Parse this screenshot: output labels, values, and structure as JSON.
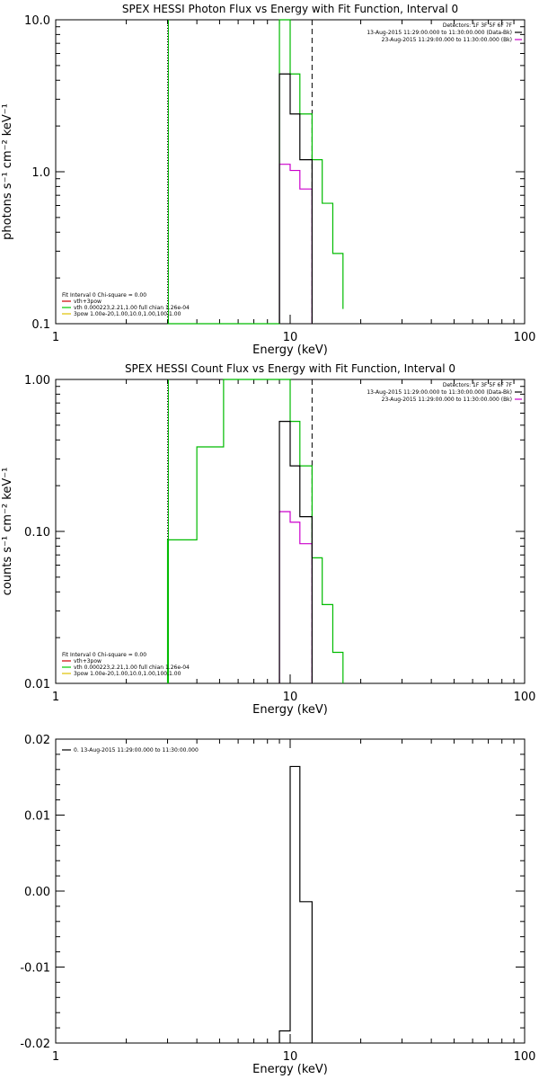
{
  "chart_data": [
    {
      "type": "line",
      "title": "SPEX HESSI Photon Flux vs Energy with Fit Function, Interval 0",
      "xlabel": "Energy (keV)",
      "ylabel": "photons s⁻¹ cm⁻² keV⁻¹",
      "xscale": "log",
      "yscale": "log",
      "xlim": [
        1,
        100
      ],
      "ylim": [
        0.1,
        10
      ],
      "xticks": [
        "1",
        "10",
        "100"
      ],
      "yticks": [
        {
          "v": 10,
          "label": "10.0"
        },
        {
          "v": 1,
          "label": "1.0"
        },
        {
          "v": 0.1,
          "label": "0.1"
        }
      ],
      "header_right": [
        {
          "text": "Detectors: 1F 3F 5F 6F 7F",
          "color": null
        },
        {
          "text": "13-Aug-2015 11:29:00.000 to 11:30:00.000 (Data-Bk)",
          "color": "#000000"
        },
        {
          "text": "23-Aug-2015 11:29:00.000 to 11:30:00.000 (Bk)",
          "color": "#cc00cc"
        }
      ],
      "legend_lower_left": [
        {
          "text": "Fit Interval 0   Chi-square = 0.00",
          "color": null
        },
        {
          "text": "vth+3pow",
          "color": "#cc0000"
        },
        {
          "text": "vth 0.000223,2.21,1.00   full chian 1.26e-04",
          "color": "#00cc00"
        },
        {
          "text": "3pow 1.00e-20,1.00,10.0,1.00,100,1.00",
          "color": "#e0c000"
        }
      ],
      "vlines": [
        {
          "x": 3.0,
          "style": "dotted",
          "color": "#000000"
        },
        {
          "x": 3.0,
          "style": "solid",
          "color": "#00bb00"
        },
        {
          "x": 12.4,
          "style": "dashed",
          "color": "#000000"
        }
      ],
      "series": [
        {
          "name": "Data-Bk",
          "color": "#000000",
          "edges": [
            9,
            10,
            11,
            12.4
          ],
          "values": [
            4.4,
            2.4,
            1.2
          ]
        },
        {
          "name": "Bk",
          "color": "#cc00cc",
          "edges": [
            9,
            10,
            11,
            12.4
          ],
          "values": [
            1.12,
            1.02,
            0.77
          ]
        },
        {
          "name": "vth",
          "color": "#00bb00",
          "edges": [
            3,
            9,
            10,
            11,
            12.4,
            13.7,
            15.2,
            16.8
          ],
          "values": [
            0.1,
            10.0,
            4.4,
            2.4,
            1.2,
            0.62,
            0.29,
            0.125
          ]
        }
      ]
    },
    {
      "type": "line",
      "title": "SPEX HESSI Count Flux vs Energy with Fit Function, Interval 0",
      "xlabel": "Energy (keV)",
      "ylabel": "counts s⁻¹ cm⁻² keV⁻¹",
      "xscale": "log",
      "yscale": "log",
      "xlim": [
        1,
        100
      ],
      "ylim": [
        0.01,
        1
      ],
      "xticks": [
        "1",
        "10",
        "100"
      ],
      "yticks": [
        {
          "v": 1,
          "label": "1.00"
        },
        {
          "v": 0.1,
          "label": "0.10"
        },
        {
          "v": 0.01,
          "label": "0.01"
        }
      ],
      "header_right": [
        {
          "text": "Detectors: 1F 3F 5F 6F 7F",
          "color": null
        },
        {
          "text": "13-Aug-2015 11:29:00.000 to 11:30:00.000 (Data-Bk)",
          "color": "#000000"
        },
        {
          "text": "23-Aug-2015 11:29:00.000 to 11:30:00.000 (Bk)",
          "color": "#cc00cc"
        }
      ],
      "legend_lower_left": [
        {
          "text": "Fit Interval 0   Chi-square = 0.00",
          "color": null
        },
        {
          "text": "vth+3pow",
          "color": "#cc0000"
        },
        {
          "text": "vth 0.000223,2.21,1.00   full chian 1.26e-04",
          "color": "#00cc00"
        },
        {
          "text": "3pow 1.00e-20,1.00,10.0,1.00,100,1.00",
          "color": "#e0c000"
        }
      ],
      "vlines": [
        {
          "x": 3.0,
          "style": "dotted",
          "color": "#000000"
        },
        {
          "x": 3.0,
          "style": "solid",
          "color": "#00bb00"
        },
        {
          "x": 12.4,
          "style": "dashed",
          "color": "#000000"
        }
      ],
      "series": [
        {
          "name": "Data-Bk",
          "color": "#000000",
          "edges": [
            9,
            10,
            11,
            12.4
          ],
          "values": [
            0.53,
            0.27,
            0.125
          ]
        },
        {
          "name": "Bk",
          "color": "#cc00cc",
          "edges": [
            9,
            10,
            11,
            12.4
          ],
          "values": [
            0.135,
            0.115,
            0.083
          ]
        },
        {
          "name": "vth",
          "color": "#00bb00",
          "edges": [
            3,
            4,
            5.2,
            9,
            10,
            11,
            12.4,
            13.7,
            15.2,
            16.8
          ],
          "values": [
            0.088,
            0.36,
            1.0,
            1.0,
            0.53,
            0.27,
            0.067,
            0.033,
            0.016
          ]
        }
      ]
    },
    {
      "type": "line",
      "title": "",
      "xlabel": "Energy (keV)",
      "ylabel": "",
      "xscale": "log",
      "yscale": "linear",
      "xlim": [
        1,
        100
      ],
      "ylim": [
        -0.02,
        0.02
      ],
      "xticks": [
        "1",
        "10",
        "100"
      ],
      "yticks": [
        {
          "v": 0.02,
          "label": "0.02"
        },
        {
          "v": 0.01,
          "label": "0.01"
        },
        {
          "v": 0.0,
          "label": "0.00"
        },
        {
          "v": -0.01,
          "label": "-0.01"
        },
        {
          "v": -0.02,
          "label": "-0.02"
        }
      ],
      "legend_upper_left": [
        {
          "text": "0. 13-Aug-2015 11:29:00.000 to 11:30:00.000",
          "color": "#000000"
        }
      ],
      "series": [
        {
          "name": "0. 13-Aug-2015 11:29:00.000 to 11:30:00.000",
          "color": "#000000",
          "edges": [
            9,
            10,
            11,
            12.4
          ],
          "values": [
            -0.0184,
            0.0164,
            -0.0014
          ]
        }
      ]
    }
  ]
}
